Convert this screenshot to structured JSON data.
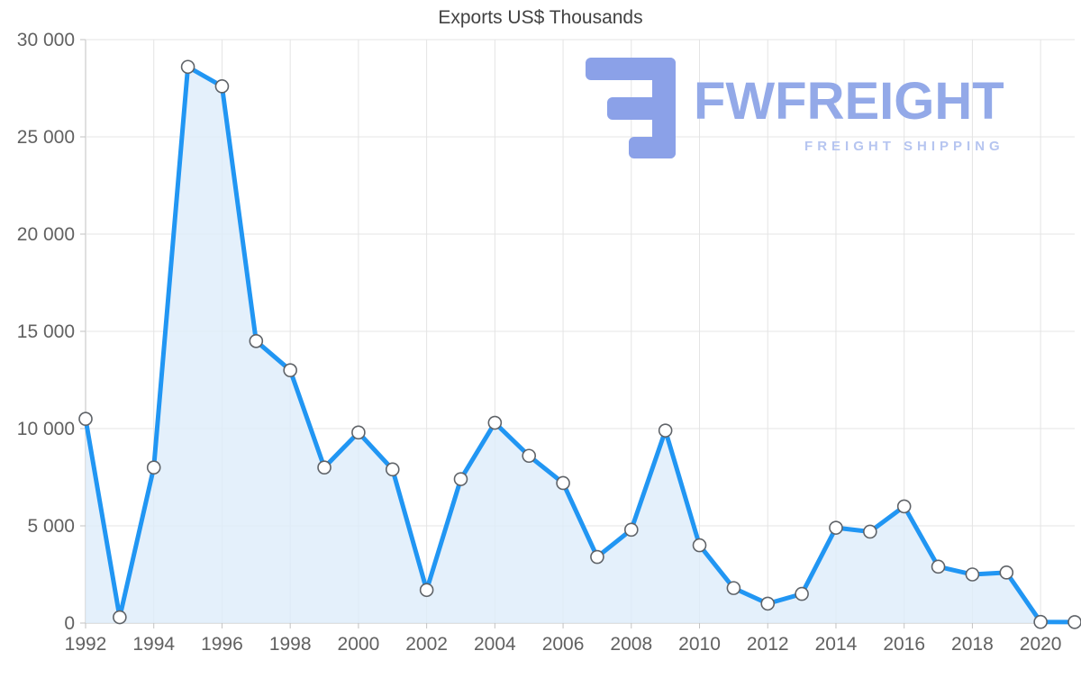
{
  "chart_data": {
    "type": "area",
    "title": "Exports US$ Thousands",
    "x": [
      1992,
      1993,
      1994,
      1995,
      1996,
      1997,
      1998,
      1999,
      2000,
      2001,
      2002,
      2003,
      2004,
      2005,
      2006,
      2007,
      2008,
      2009,
      2010,
      2011,
      2012,
      2013,
      2014,
      2015,
      2016,
      2017,
      2018,
      2019,
      2020,
      2021
    ],
    "values": [
      10500,
      300,
      8000,
      28600,
      27600,
      14500,
      13000,
      8000,
      9800,
      7900,
      1700,
      7400,
      10300,
      8600,
      7200,
      3400,
      4800,
      9900,
      4000,
      1800,
      1000,
      1500,
      4900,
      4700,
      6000,
      2900,
      2500,
      2600,
      60,
      50
    ],
    "xlabel": "",
    "ylabel": "",
    "ylim": [
      0,
      30000
    ],
    "yticks": [
      0,
      5000,
      10000,
      15000,
      20000,
      25000,
      30000
    ],
    "ytick_labels": [
      "0",
      "5 000",
      "10 000",
      "15 000",
      "20 000",
      "25 000",
      "30 000"
    ],
    "xticks": [
      1992,
      1994,
      1996,
      1998,
      2000,
      2002,
      2004,
      2006,
      2008,
      2010,
      2012,
      2014,
      2016,
      2018,
      2020
    ],
    "grid": true,
    "legend": "none",
    "line_color": "#2196f3",
    "fill_color": "#ddecfa",
    "marker_fill": "#ffffff",
    "marker_stroke": "#5f6368",
    "grid_color": "#e4e4e4",
    "axis_color": "#c2c2c2",
    "tick_label_color": "#616161"
  },
  "logo": {
    "name": "FWFREIGHT",
    "tagline": "FREIGHT SHIPPING",
    "icon": "fwfreight-f-bars-icon",
    "icon_color": "#8ba1e8",
    "name_color": "#93a9e8",
    "tagline_color": "#b6c5f0"
  }
}
